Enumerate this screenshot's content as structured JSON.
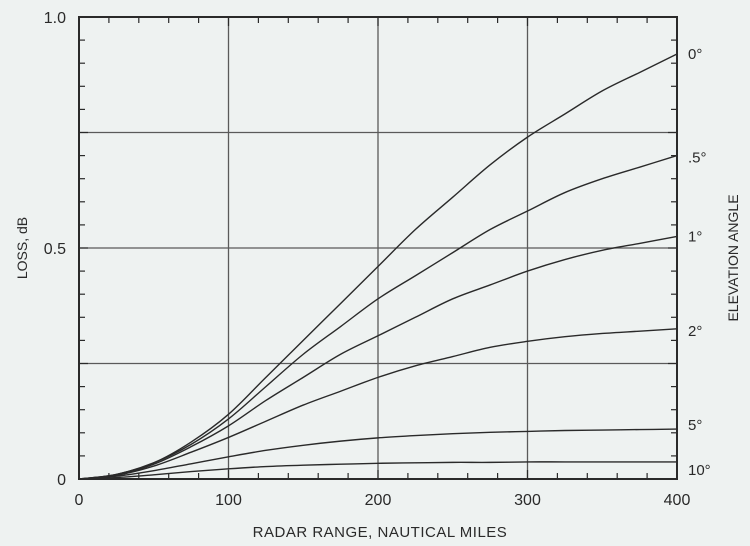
{
  "chart_data": {
    "type": "line",
    "xlabel": "RADAR RANGE, NAUTICAL MILES",
    "ylabel": "LOSS, dB",
    "right_axis_label": "ELEVATION ANGLE",
    "xlim": [
      0,
      400
    ],
    "ylim": [
      0,
      1.0
    ],
    "x_ticks": [
      0,
      100,
      200,
      300,
      400
    ],
    "x_tick_labels": [
      "0",
      "100",
      "200",
      "300",
      "400"
    ],
    "y_ticks": [
      0,
      0.5,
      1.0
    ],
    "y_tick_labels": [
      "0",
      "0.5",
      "1.0"
    ],
    "grid": true,
    "y_gridlines": [
      0.25,
      0.5,
      0.75,
      1.0
    ],
    "legend": "right-side curve labels",
    "x": [
      0,
      25,
      50,
      75,
      100,
      125,
      150,
      175,
      200,
      225,
      250,
      275,
      300,
      325,
      350,
      375,
      400
    ],
    "series": [
      {
        "name": "0°",
        "values": [
          0,
          0.01,
          0.035,
          0.08,
          0.14,
          0.22,
          0.3,
          0.38,
          0.46,
          0.54,
          0.61,
          0.68,
          0.74,
          0.79,
          0.84,
          0.88,
          0.92
        ]
      },
      {
        "name": ".5°",
        "values": [
          0,
          0.01,
          0.035,
          0.075,
          0.13,
          0.2,
          0.27,
          0.33,
          0.39,
          0.44,
          0.49,
          0.54,
          0.58,
          0.62,
          0.65,
          0.675,
          0.7
        ]
      },
      {
        "name": "1°",
        "values": [
          0,
          0.009,
          0.032,
          0.07,
          0.115,
          0.17,
          0.22,
          0.27,
          0.31,
          0.35,
          0.39,
          0.42,
          0.45,
          0.475,
          0.495,
          0.51,
          0.525
        ]
      },
      {
        "name": "2°",
        "values": [
          0,
          0.008,
          0.028,
          0.058,
          0.09,
          0.125,
          0.16,
          0.19,
          0.22,
          0.245,
          0.265,
          0.285,
          0.298,
          0.308,
          0.315,
          0.32,
          0.325
        ]
      },
      {
        "name": "5°",
        "values": [
          0,
          0.006,
          0.018,
          0.033,
          0.048,
          0.062,
          0.073,
          0.082,
          0.089,
          0.094,
          0.098,
          0.101,
          0.103,
          0.105,
          0.106,
          0.107,
          0.108
        ]
      },
      {
        "name": "10°",
        "values": [
          0,
          0.003,
          0.009,
          0.016,
          0.022,
          0.027,
          0.03,
          0.032,
          0.034,
          0.035,
          0.036,
          0.036,
          0.037,
          0.037,
          0.037,
          0.037,
          0.037
        ]
      }
    ]
  },
  "colors": {
    "background": "#eef2f1",
    "ink": "#2a2a2a",
    "grid": "#5a5a5a"
  }
}
